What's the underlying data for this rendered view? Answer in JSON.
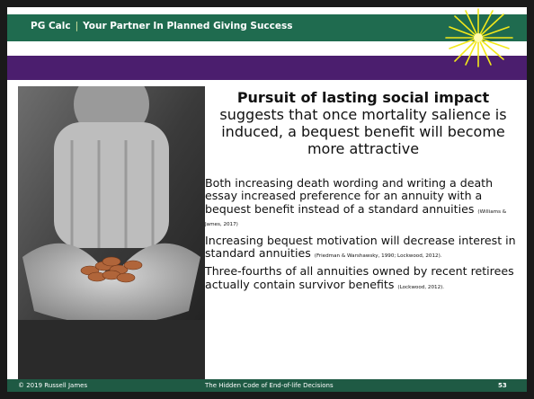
{
  "header": {
    "brand": "PG Calc",
    "separator": "|",
    "tagline": "Your Partner In Planned Giving Success"
  },
  "content": {
    "heading": "Pursuit of lasting social impact",
    "subheading": "suggests that once mortality salience is induced, a bequest benefit will become more attractive",
    "paragraphs": [
      {
        "text": "Both increasing death wording and writing a death essay increased preference for an annuity with a bequest benefit instead of a standard annuities",
        "citation": "(Williams & James, 2017)"
      },
      {
        "text": "Increasing bequest motivation will decrease interest in standard annuities",
        "citation": "(Friedman & Warshawsky, 1990; Lockwood, 2012)."
      },
      {
        "text": "Three-fourths of all annuities owned by recent retirees actually contain survivor benefits",
        "citation": "(Lockwood, 2012)."
      }
    ]
  },
  "footer": {
    "copyright": "© 2019 Russell James",
    "title": "The Hidden Code of End-of-life Decisions",
    "page": 53
  }
}
